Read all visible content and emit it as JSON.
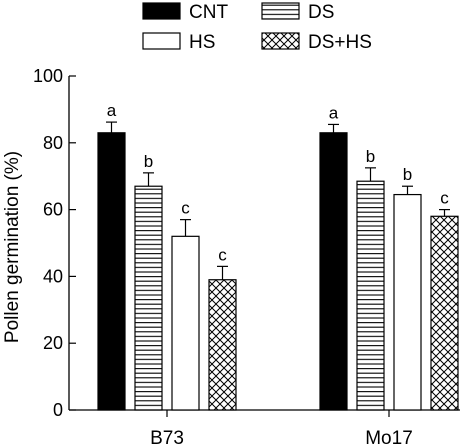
{
  "chart_data": {
    "type": "bar",
    "title": "",
    "xlabel": "",
    "ylabel": "Pollen germination (%)",
    "ylim": [
      0,
      100
    ],
    "yticks": [
      0,
      20,
      40,
      60,
      80,
      100
    ],
    "grid": false,
    "legend_position": "top",
    "categories": [
      "B73",
      "Mo17"
    ],
    "series": [
      {
        "name": "CNT",
        "pattern": "solid",
        "values": [
          83,
          83
        ],
        "errors": [
          3.2,
          2.5
        ],
        "labels": [
          "a",
          "a"
        ]
      },
      {
        "name": "DS",
        "pattern": "horizontal-lines",
        "values": [
          67,
          68.5
        ],
        "errors": [
          4,
          4
        ],
        "labels": [
          "b",
          "b"
        ]
      },
      {
        "name": "HS",
        "pattern": "white",
        "values": [
          52,
          64.5
        ],
        "errors": [
          5,
          2.5
        ],
        "labels": [
          "c",
          "b"
        ]
      },
      {
        "name": "DS+HS",
        "pattern": "crosshatch",
        "values": [
          39,
          58
        ],
        "errors": [
          4,
          2
        ],
        "labels": [
          "c",
          "c"
        ]
      }
    ],
    "colors": {
      "bar_fill": "#000000",
      "background": "#ffffff",
      "stroke": "#000000"
    }
  }
}
